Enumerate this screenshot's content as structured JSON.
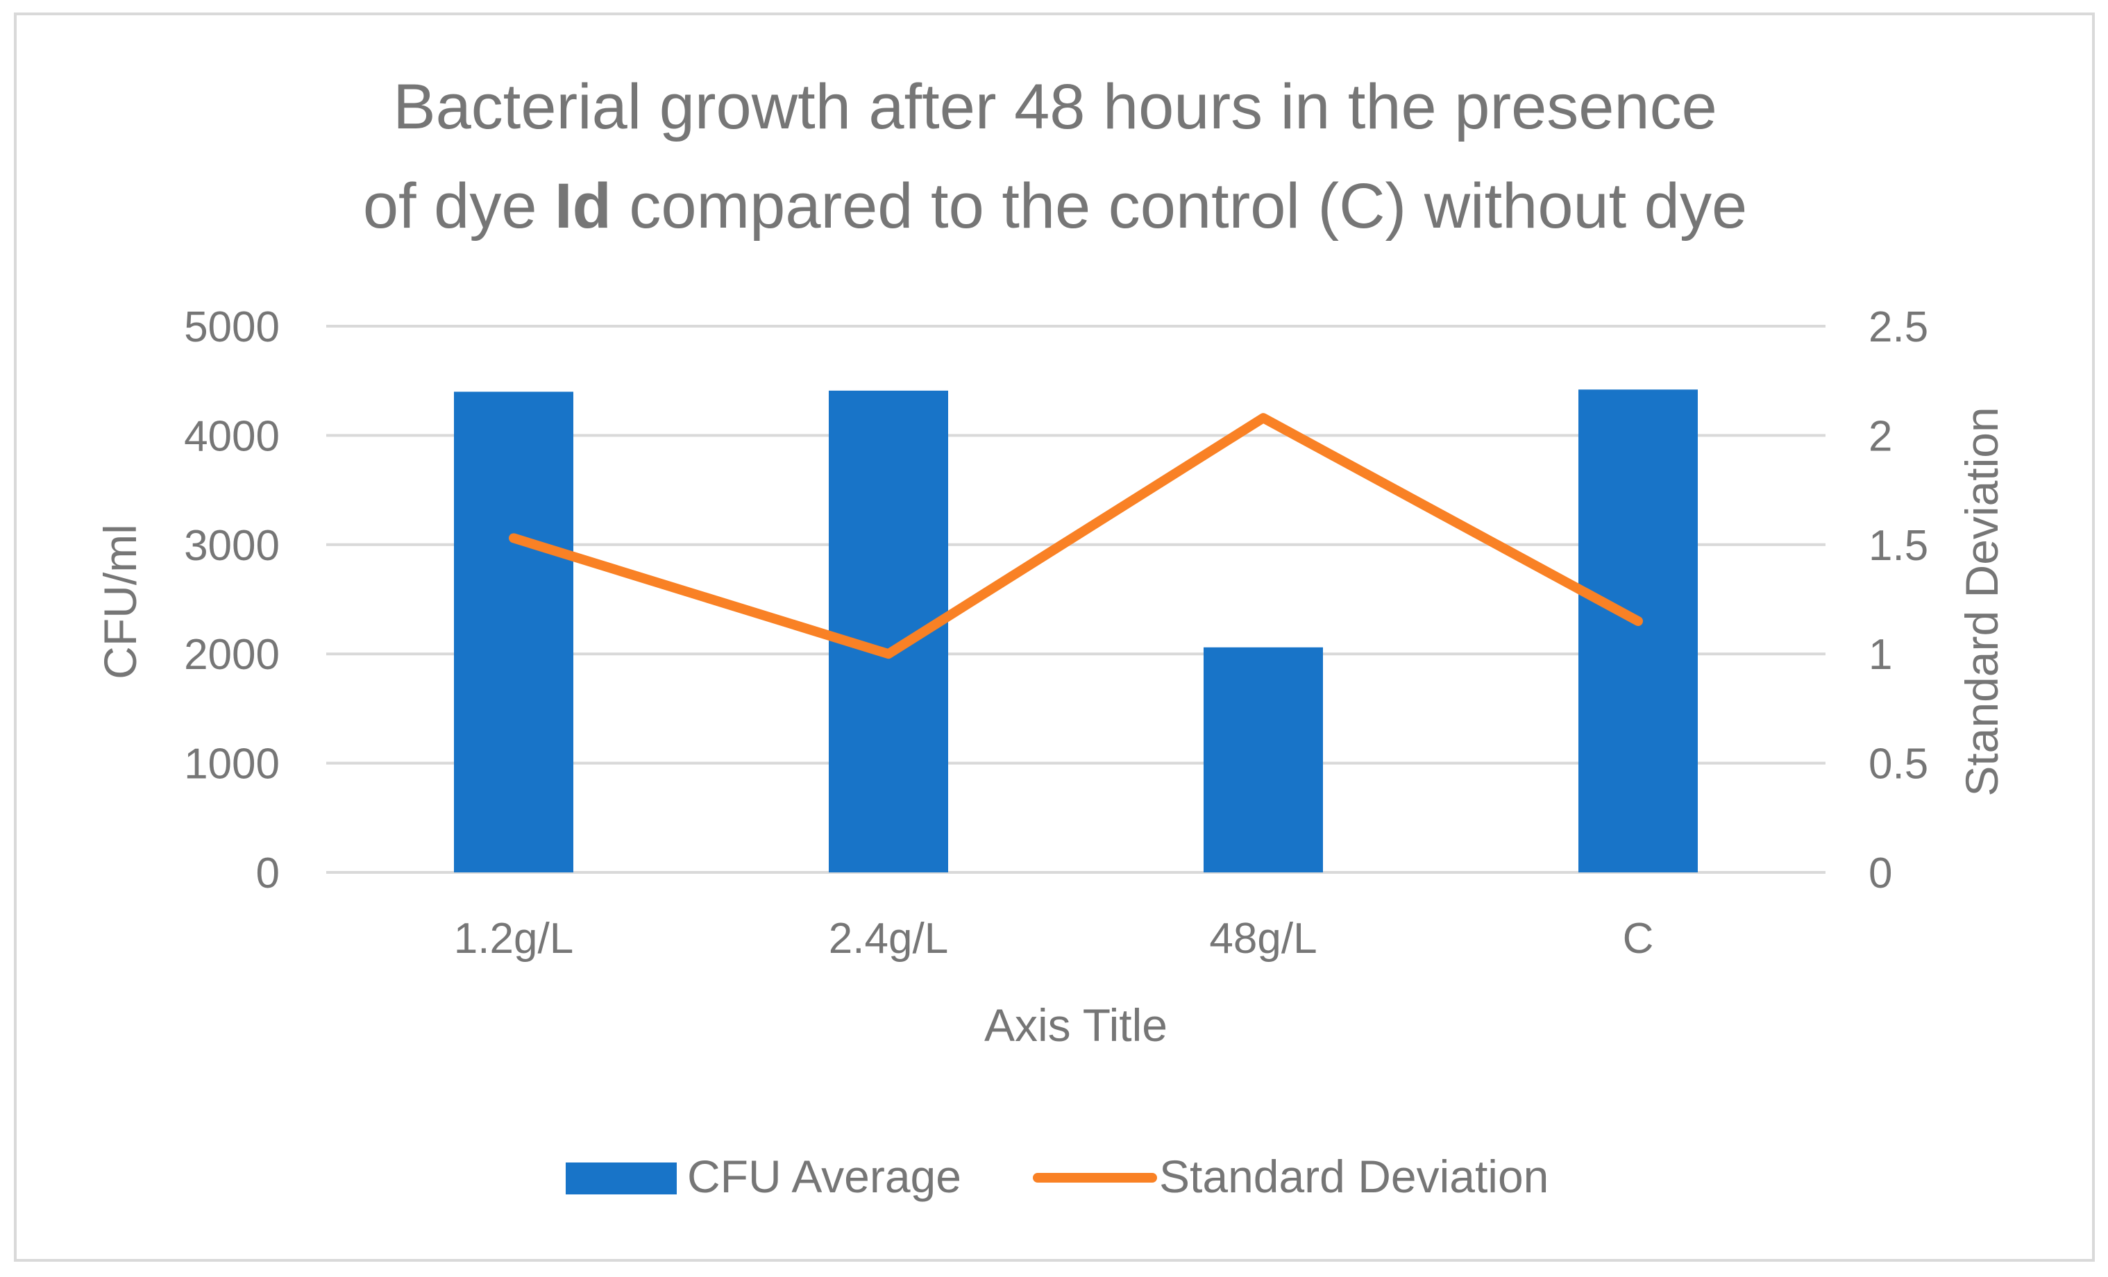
{
  "chart_data": {
    "type": "bar+line",
    "title": {
      "line1": "Bacterial growth after 48 hours in the presence",
      "line2_prefix": "of dye ",
      "line2_bold": "Id",
      "line2_suffix": " compared to the control (C) without dye"
    },
    "categories": [
      "1.2g/L",
      "2.4g/L",
      "48g/L",
      "C"
    ],
    "series": [
      {
        "name": "CFU Average",
        "type": "bar",
        "axis": "left",
        "color": "#1874c8",
        "values": [
          4400,
          4410,
          2060,
          4420
        ]
      },
      {
        "name": "Standard Deviation",
        "type": "line",
        "axis": "right",
        "color": "#f98125",
        "values": [
          1.53,
          1.0,
          2.08,
          1.15
        ]
      }
    ],
    "xlabel": "Axis Title",
    "ylabel_left": "CFU/ml",
    "ylabel_right": "Standard  Deviation",
    "ylim_left": [
      0,
      5000
    ],
    "ylim_right": [
      0,
      2.5
    ],
    "yticks_left": [
      "0",
      "1000",
      "2000",
      "3000",
      "4000",
      "5000"
    ],
    "yticks_right": [
      "0",
      "0.5",
      "1",
      "1.5",
      "2",
      "2.5"
    ],
    "grid": true,
    "legend_position": "bottom",
    "gridline_color": "#d9d9d9",
    "border_color": "#d9d9d9",
    "text_color": "#767676"
  }
}
